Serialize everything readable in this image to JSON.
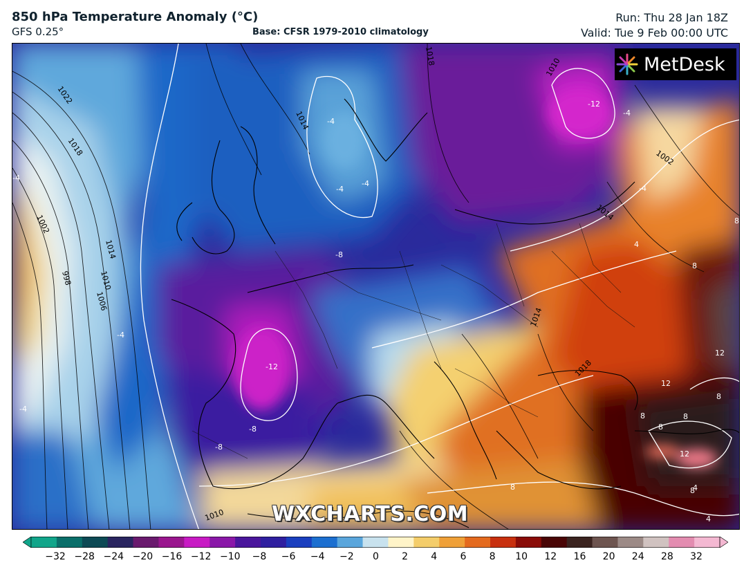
{
  "header": {
    "title": "850 hPa Temperature Anomaly (°C)",
    "model": "GFS 0.25°",
    "base": "Base: CFSR 1979-2010 climatology",
    "run": "Run: Thu 28 Jan 18Z",
    "valid": "Valid: Tue 9 Feb 00:00 UTC"
  },
  "logo": {
    "text": "MetDesk",
    "icon": "metdesk-starburst-logo"
  },
  "watermark": "WXCHARTS.COM",
  "map": {
    "isobar_labels": [
      "1022",
      "1018",
      "1014",
      "1010",
      "1006",
      "1002",
      "998",
      "1014",
      "1018",
      "1010",
      "1002",
      "1014",
      "1014",
      "1018",
      "1010"
    ],
    "anomaly_labels": [
      "-4",
      "-4",
      "-4",
      "-4",
      "-4",
      "-4",
      "-12",
      "-4",
      "-8",
      "-12",
      "-8",
      "-8",
      "-4",
      "4",
      "4",
      "8",
      "8",
      "8",
      "8",
      "12",
      "12",
      "12",
      "8",
      "8",
      "8",
      "8",
      "4"
    ]
  },
  "colorbar": {
    "ticks": [
      "−32",
      "−28",
      "−24",
      "−20",
      "−16",
      "−12",
      "−10",
      "−8",
      "−6",
      "−4",
      "−2",
      "0",
      "2",
      "4",
      "6",
      "8",
      "10",
      "12",
      "16",
      "20",
      "24",
      "28",
      "32"
    ],
    "colors": [
      "#11a58a",
      "#0a6f6a",
      "#0d4a55",
      "#2a2560",
      "#6a1a6e",
      "#9a168e",
      "#c81ac4",
      "#8a17a8",
      "#4a169c",
      "#2f1fa0",
      "#1a3fbf",
      "#1c6fd0",
      "#5aa6dc",
      "#c8e2ee",
      "#fff4c8",
      "#f4cd6a",
      "#efa038",
      "#e46a1e",
      "#c8300f",
      "#8a0c08",
      "#4a0606",
      "#3b2420",
      "#6e5550",
      "#9c8a86",
      "#d0c2c0",
      "#e38cb0",
      "#f4b8d2"
    ]
  }
}
